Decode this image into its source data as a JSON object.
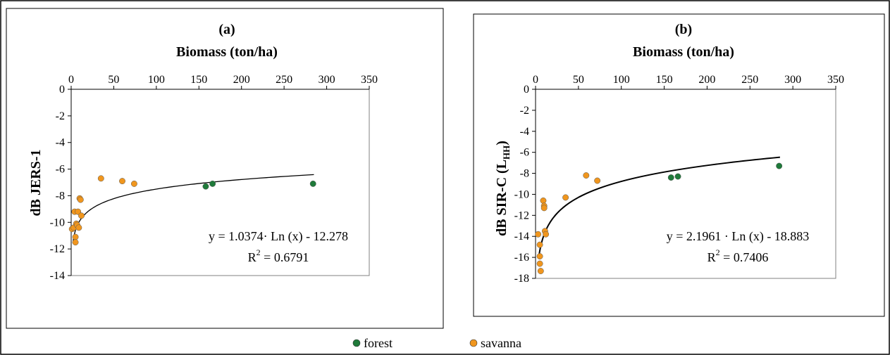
{
  "legend": {
    "items": [
      {
        "label": "forest",
        "color": "#1f7a3a"
      },
      {
        "label": "savanna",
        "color": "#f0961e"
      }
    ]
  },
  "chart_data": [
    {
      "type": "scatter",
      "panel_label": "(a)",
      "xlabel": "Biomass (ton/ha)",
      "ylabel": "dB JERS-1",
      "xlim": [
        0,
        350
      ],
      "ylim": [
        -14,
        0
      ],
      "x_ticks": [
        0,
        50,
        100,
        150,
        200,
        250,
        300,
        350
      ],
      "y_ticks": [
        0,
        -2,
        -4,
        -6,
        -8,
        -10,
        -12,
        -14
      ],
      "x_axis_position": "top",
      "grid": false,
      "series": [
        {
          "name": "forest",
          "color": "#1f7a3a",
          "points": [
            [
              158,
              -7.3
            ],
            [
              166,
              -7.1
            ],
            [
              284,
              -7.1
            ]
          ]
        },
        {
          "name": "savanna",
          "color": "#f0961e",
          "points": [
            [
              1,
              -10.5
            ],
            [
              3,
              -10.4
            ],
            [
              4,
              -9.2
            ],
            [
              5,
              -11.1
            ],
            [
              5,
              -11.5
            ],
            [
              6,
              -10.1
            ],
            [
              7,
              -10.2
            ],
            [
              8,
              -9.2
            ],
            [
              9,
              -10.4
            ],
            [
              10,
              -8.2
            ],
            [
              11,
              -8.3
            ],
            [
              12,
              -9.5
            ],
            [
              35,
              -6.7
            ],
            [
              60,
              -6.9
            ],
            [
              74,
              -7.1
            ]
          ]
        }
      ],
      "trendline": {
        "type": "log",
        "a": 1.0374,
        "b": -12.278,
        "x_range": [
          2,
          285
        ],
        "color": "#000000"
      },
      "annotations": {
        "equation": "y = 1.0374· Ln (x) - 12.278",
        "r2_base": "R",
        "r2_sup": "2",
        "r2_value": " = 0.6791"
      }
    },
    {
      "type": "scatter",
      "panel_label": "(b)",
      "xlabel": "Biomass (ton/ha)",
      "ylabel": "dB SIR-C (L",
      "ylabel_sub": "HH",
      "ylabel_close": ")",
      "xlim": [
        0,
        350
      ],
      "ylim": [
        -18,
        0
      ],
      "x_ticks": [
        0,
        50,
        100,
        150,
        200,
        250,
        300,
        350
      ],
      "y_ticks": [
        0,
        -2,
        -4,
        -6,
        -8,
        -10,
        -12,
        -14,
        -16,
        -18
      ],
      "x_axis_position": "top",
      "grid": false,
      "series": [
        {
          "name": "forest",
          "color": "#1f7a3a",
          "points": [
            [
              158,
              -8.4
            ],
            [
              166,
              -8.3
            ],
            [
              284,
              -7.3
            ]
          ]
        },
        {
          "name": "savanna",
          "color": "#f0961e",
          "points": [
            [
              3,
              -13.8
            ],
            [
              5,
              -14.8
            ],
            [
              5,
              -15.9
            ],
            [
              5,
              -16.6
            ],
            [
              6,
              -17.3
            ],
            [
              9,
              -10.6
            ],
            [
              10,
              -11.1
            ],
            [
              10,
              -11.3
            ],
            [
              11,
              -13.5
            ],
            [
              12,
              -13.8
            ],
            [
              35,
              -10.3
            ],
            [
              59,
              -8.2
            ],
            [
              72,
              -8.7
            ]
          ]
        }
      ],
      "trendline": {
        "type": "log",
        "a": 2.1961,
        "b": -18.883,
        "x_range": [
          4,
          285
        ],
        "color": "#000000"
      },
      "annotations": {
        "equation": "y = 2.1961 · Ln (x) - 18.883",
        "r2_base": "R",
        "r2_sup": "2",
        "r2_value": " = 0.7406"
      }
    }
  ]
}
